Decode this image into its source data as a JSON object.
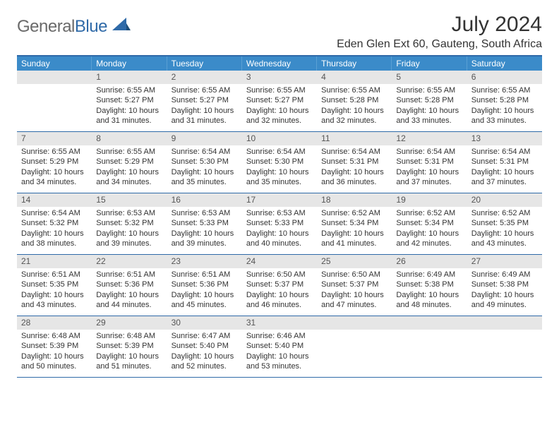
{
  "brand": {
    "general": "General",
    "blue": "Blue"
  },
  "title": "July 2024",
  "location": "Eden Glen Ext 60, Gauteng, South Africa",
  "headers": [
    "Sunday",
    "Monday",
    "Tuesday",
    "Wednesday",
    "Thursday",
    "Friday",
    "Saturday"
  ],
  "colors": {
    "header_bg": "#3b8bc9",
    "header_border": "#5aa0d4",
    "rule": "#2f6aa8",
    "daynum_bg": "#e6e6e6",
    "text": "#333333",
    "logo_gray": "#6a6a6a",
    "logo_blue": "#2f6aa8",
    "page_bg": "#ffffff"
  },
  "typography": {
    "title_fontsize": 30,
    "location_fontsize": 16,
    "header_fontsize": 12,
    "daynum_fontsize": 12,
    "body_fontsize": 11,
    "logo_fontsize": 24
  },
  "layout": {
    "columns": 7,
    "rows": 5,
    "cell_min_height": 86
  },
  "weeks": [
    [
      {
        "n": "",
        "sunrise": "",
        "sunset": "",
        "daylight": ""
      },
      {
        "n": "1",
        "sunrise": "Sunrise: 6:55 AM",
        "sunset": "Sunset: 5:27 PM",
        "daylight": "Daylight: 10 hours and 31 minutes."
      },
      {
        "n": "2",
        "sunrise": "Sunrise: 6:55 AM",
        "sunset": "Sunset: 5:27 PM",
        "daylight": "Daylight: 10 hours and 31 minutes."
      },
      {
        "n": "3",
        "sunrise": "Sunrise: 6:55 AM",
        "sunset": "Sunset: 5:27 PM",
        "daylight": "Daylight: 10 hours and 32 minutes."
      },
      {
        "n": "4",
        "sunrise": "Sunrise: 6:55 AM",
        "sunset": "Sunset: 5:28 PM",
        "daylight": "Daylight: 10 hours and 32 minutes."
      },
      {
        "n": "5",
        "sunrise": "Sunrise: 6:55 AM",
        "sunset": "Sunset: 5:28 PM",
        "daylight": "Daylight: 10 hours and 33 minutes."
      },
      {
        "n": "6",
        "sunrise": "Sunrise: 6:55 AM",
        "sunset": "Sunset: 5:28 PM",
        "daylight": "Daylight: 10 hours and 33 minutes."
      }
    ],
    [
      {
        "n": "7",
        "sunrise": "Sunrise: 6:55 AM",
        "sunset": "Sunset: 5:29 PM",
        "daylight": "Daylight: 10 hours and 34 minutes."
      },
      {
        "n": "8",
        "sunrise": "Sunrise: 6:55 AM",
        "sunset": "Sunset: 5:29 PM",
        "daylight": "Daylight: 10 hours and 34 minutes."
      },
      {
        "n": "9",
        "sunrise": "Sunrise: 6:54 AM",
        "sunset": "Sunset: 5:30 PM",
        "daylight": "Daylight: 10 hours and 35 minutes."
      },
      {
        "n": "10",
        "sunrise": "Sunrise: 6:54 AM",
        "sunset": "Sunset: 5:30 PM",
        "daylight": "Daylight: 10 hours and 35 minutes."
      },
      {
        "n": "11",
        "sunrise": "Sunrise: 6:54 AM",
        "sunset": "Sunset: 5:31 PM",
        "daylight": "Daylight: 10 hours and 36 minutes."
      },
      {
        "n": "12",
        "sunrise": "Sunrise: 6:54 AM",
        "sunset": "Sunset: 5:31 PM",
        "daylight": "Daylight: 10 hours and 37 minutes."
      },
      {
        "n": "13",
        "sunrise": "Sunrise: 6:54 AM",
        "sunset": "Sunset: 5:31 PM",
        "daylight": "Daylight: 10 hours and 37 minutes."
      }
    ],
    [
      {
        "n": "14",
        "sunrise": "Sunrise: 6:54 AM",
        "sunset": "Sunset: 5:32 PM",
        "daylight": "Daylight: 10 hours and 38 minutes."
      },
      {
        "n": "15",
        "sunrise": "Sunrise: 6:53 AM",
        "sunset": "Sunset: 5:32 PM",
        "daylight": "Daylight: 10 hours and 39 minutes."
      },
      {
        "n": "16",
        "sunrise": "Sunrise: 6:53 AM",
        "sunset": "Sunset: 5:33 PM",
        "daylight": "Daylight: 10 hours and 39 minutes."
      },
      {
        "n": "17",
        "sunrise": "Sunrise: 6:53 AM",
        "sunset": "Sunset: 5:33 PM",
        "daylight": "Daylight: 10 hours and 40 minutes."
      },
      {
        "n": "18",
        "sunrise": "Sunrise: 6:52 AM",
        "sunset": "Sunset: 5:34 PM",
        "daylight": "Daylight: 10 hours and 41 minutes."
      },
      {
        "n": "19",
        "sunrise": "Sunrise: 6:52 AM",
        "sunset": "Sunset: 5:34 PM",
        "daylight": "Daylight: 10 hours and 42 minutes."
      },
      {
        "n": "20",
        "sunrise": "Sunrise: 6:52 AM",
        "sunset": "Sunset: 5:35 PM",
        "daylight": "Daylight: 10 hours and 43 minutes."
      }
    ],
    [
      {
        "n": "21",
        "sunrise": "Sunrise: 6:51 AM",
        "sunset": "Sunset: 5:35 PM",
        "daylight": "Daylight: 10 hours and 43 minutes."
      },
      {
        "n": "22",
        "sunrise": "Sunrise: 6:51 AM",
        "sunset": "Sunset: 5:36 PM",
        "daylight": "Daylight: 10 hours and 44 minutes."
      },
      {
        "n": "23",
        "sunrise": "Sunrise: 6:51 AM",
        "sunset": "Sunset: 5:36 PM",
        "daylight": "Daylight: 10 hours and 45 minutes."
      },
      {
        "n": "24",
        "sunrise": "Sunrise: 6:50 AM",
        "sunset": "Sunset: 5:37 PM",
        "daylight": "Daylight: 10 hours and 46 minutes."
      },
      {
        "n": "25",
        "sunrise": "Sunrise: 6:50 AM",
        "sunset": "Sunset: 5:37 PM",
        "daylight": "Daylight: 10 hours and 47 minutes."
      },
      {
        "n": "26",
        "sunrise": "Sunrise: 6:49 AM",
        "sunset": "Sunset: 5:38 PM",
        "daylight": "Daylight: 10 hours and 48 minutes."
      },
      {
        "n": "27",
        "sunrise": "Sunrise: 6:49 AM",
        "sunset": "Sunset: 5:38 PM",
        "daylight": "Daylight: 10 hours and 49 minutes."
      }
    ],
    [
      {
        "n": "28",
        "sunrise": "Sunrise: 6:48 AM",
        "sunset": "Sunset: 5:39 PM",
        "daylight": "Daylight: 10 hours and 50 minutes."
      },
      {
        "n": "29",
        "sunrise": "Sunrise: 6:48 AM",
        "sunset": "Sunset: 5:39 PM",
        "daylight": "Daylight: 10 hours and 51 minutes."
      },
      {
        "n": "30",
        "sunrise": "Sunrise: 6:47 AM",
        "sunset": "Sunset: 5:40 PM",
        "daylight": "Daylight: 10 hours and 52 minutes."
      },
      {
        "n": "31",
        "sunrise": "Sunrise: 6:46 AM",
        "sunset": "Sunset: 5:40 PM",
        "daylight": "Daylight: 10 hours and 53 minutes."
      },
      {
        "n": "",
        "sunrise": "",
        "sunset": "",
        "daylight": ""
      },
      {
        "n": "",
        "sunrise": "",
        "sunset": "",
        "daylight": ""
      },
      {
        "n": "",
        "sunrise": "",
        "sunset": "",
        "daylight": ""
      }
    ]
  ]
}
